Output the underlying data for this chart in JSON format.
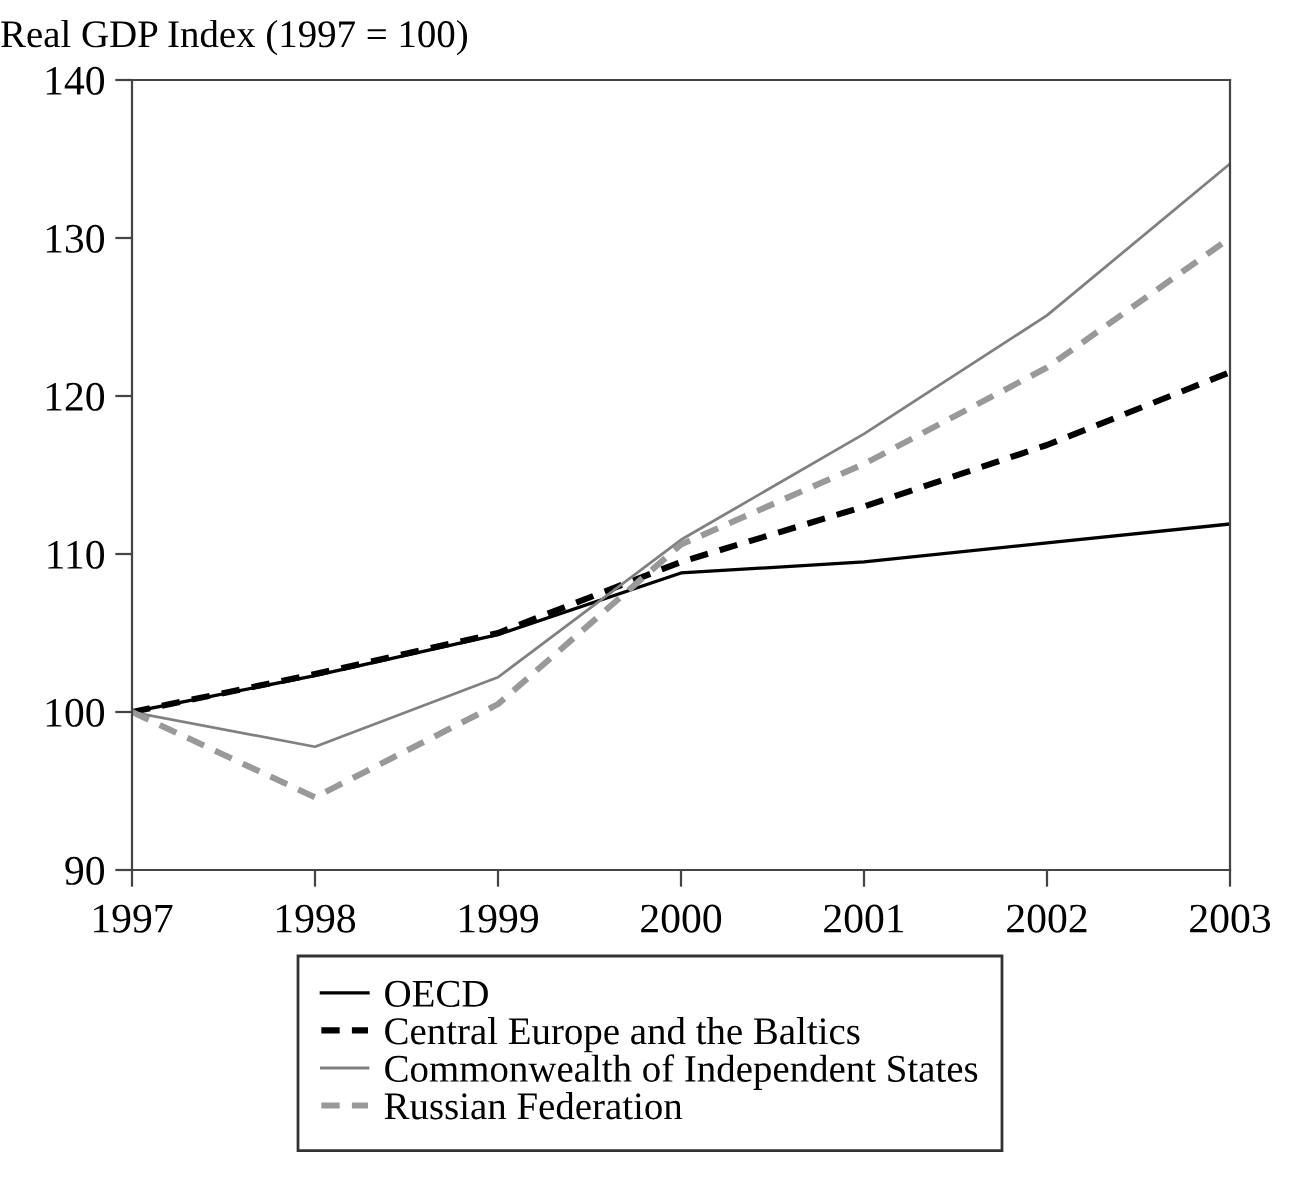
{
  "chart_data": {
    "type": "line",
    "title": "Real GDP Index (1997 = 100)",
    "x": [
      1997,
      1998,
      1999,
      2000,
      2001,
      2002,
      2003
    ],
    "series": [
      {
        "name": "OECD",
        "color": "#000000",
        "line_style": "solid",
        "values": [
          100,
          102.3,
          104.9,
          108.8,
          109.5,
          110.7,
          111.9
        ]
      },
      {
        "name": "Central Europe and the Baltics",
        "color": "#000000",
        "line_style": "dashed",
        "values": [
          100,
          102.4,
          105.0,
          109.5,
          113.0,
          116.9,
          121.5
        ]
      },
      {
        "name": "Commonwealth of Independent States",
        "color": "#808080",
        "line_style": "solid",
        "values": [
          100,
          97.8,
          102.2,
          110.9,
          117.6,
          125.1,
          134.7
        ]
      },
      {
        "name": "Russian Federation",
        "color": "#999999",
        "line_style": "dashed",
        "values": [
          100,
          94.6,
          100.5,
          110.6,
          115.7,
          121.8,
          130.0
        ]
      }
    ],
    "xlim": [
      1997,
      2003
    ],
    "xticks": [
      1997,
      1998,
      1999,
      2000,
      2001,
      2002,
      2003
    ],
    "ylim": [
      90,
      140
    ],
    "yticks": [
      90,
      100,
      110,
      120,
      130,
      140
    ],
    "grid": false,
    "legend": "bottom",
    "marker": "none"
  }
}
